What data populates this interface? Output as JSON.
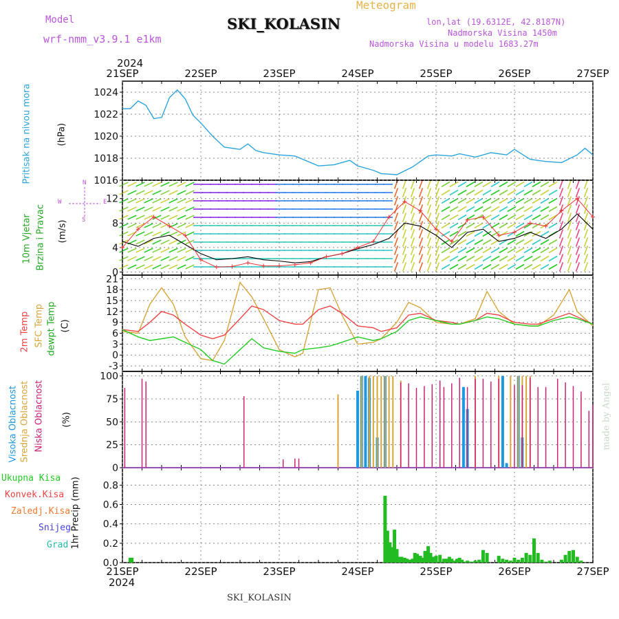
{
  "header": {
    "model_label": "Model",
    "model_name": "wrf-nmm_v3.9.1  e1km",
    "station": "SKI_KOLASIN",
    "chart_title": "Meteogram",
    "lonlat": "lon,lat (19.6312E, 42.8187N)",
    "altitude": "Nadmorska Visina 1450m",
    "model_altitude": "Nadmorska Visina u modelu 1683.27m",
    "year_top": "2024",
    "year_bottom": "2024",
    "footer_station": "SKI_KOLASIN",
    "credit": "made by Angel"
  },
  "axis_dates": [
    "21SEP",
    "22SEP",
    "23SEP",
    "24SEP",
    "25SEP",
    "26SEP",
    "27SEP"
  ],
  "labels": {
    "pressure": "Pritisak na nivou mora",
    "pressure_unit": "(hPa)",
    "wind_1": "10m Vjetar",
    "wind_2": "Brzina i Pravac",
    "wind_unit": "(m/s)",
    "wind_compass_n": "N",
    "wind_compass_w": "W",
    "wind_compass_e": "E",
    "wind_compass_s": "S",
    "temp_2m": "2m Temp",
    "temp_sfc": "SFC Temp",
    "temp_dew": "dewpt Temp",
    "temp_unit": "(C)",
    "cloud_high": "Visoka Oblacnost",
    "cloud_mid": "Srednja Oblacnost",
    "cloud_low": "Niska Oblacnost",
    "cloud_unit": "(%)",
    "precip_total": "Ukupna Kisa",
    "precip_conv": "Konvek.Kisa",
    "precip_frz": "Zaledj.Kisa",
    "precip_snow": "Snijeg",
    "precip_grad": "Grad",
    "precip_axis": "1hr Precip (mm)"
  },
  "colors": {
    "pressure": "#2aa4e0",
    "wind_speed": "#000000",
    "wind_gust": "#ee3333",
    "temp_2m": "#ee4444",
    "temp_sfc": "#d9a53a",
    "temp_dew": "#22cc22",
    "cloud_high": "#1f98e0",
    "cloud_mid": "#d9a53a",
    "cloud_low": "#cc2277",
    "precip_total": "#22bb22",
    "header_purple": "#bb55dd",
    "header_orange": "#e6b24a"
  },
  "chart_data": [
    {
      "type": "line",
      "title": "Pritisak na nivou mora",
      "ylabel": "(hPa)",
      "ylim": [
        1016,
        1025
      ],
      "yticks": [
        1016,
        1018,
        1020,
        1022,
        1024
      ],
      "x_days": [
        0,
        0.1,
        0.2,
        0.3,
        0.4,
        0.5,
        0.6,
        0.7,
        0.8,
        0.9,
        1.0,
        1.15,
        1.3,
        1.5,
        1.6,
        1.7,
        1.8,
        2.0,
        2.2,
        2.5,
        2.7,
        2.9,
        3.0,
        3.2,
        3.3,
        3.5,
        3.7,
        3.9,
        4.0,
        4.2,
        4.3,
        4.5,
        4.7,
        4.9,
        5.0,
        5.2,
        5.4,
        5.6,
        5.8,
        5.9,
        6.0
      ],
      "values": [
        1022.5,
        1022.5,
        1023.2,
        1022.8,
        1021.6,
        1021.7,
        1023.5,
        1024.2,
        1023.4,
        1021.9,
        1021.2,
        1020.0,
        1019.0,
        1018.8,
        1019.3,
        1018.7,
        1018.5,
        1018.3,
        1018.2,
        1017.3,
        1017.4,
        1017.8,
        1017.3,
        1016.9,
        1016.6,
        1016.5,
        1017.2,
        1018.2,
        1018.3,
        1018.2,
        1018.4,
        1018.1,
        1018.5,
        1018.3,
        1018.8,
        1017.9,
        1017.7,
        1017.6,
        1018.3,
        1018.9,
        1018.3
      ],
      "x_range_days": [
        0,
        6
      ]
    },
    {
      "type": "line",
      "title": "10m Vjetar Brzina i Pravac",
      "ylabel": "(m/s)",
      "ylim": [
        -0.5,
        15
      ],
      "yticks": [
        0,
        4,
        8,
        12
      ],
      "series": [
        {
          "role": "wind speed",
          "x_days": [
            0,
            0.2,
            0.4,
            0.6,
            0.8,
            1.0,
            1.2,
            1.4,
            1.6,
            1.8,
            2.0,
            2.2,
            2.4,
            2.6,
            2.8,
            3.0,
            3.2,
            3.4,
            3.6,
            3.8,
            4.0,
            4.2,
            4.4,
            4.6,
            4.8,
            5.0,
            5.2,
            5.4,
            5.6,
            5.8,
            6.0
          ],
          "values": [
            5.0,
            4.2,
            5.5,
            6.0,
            4.5,
            3.0,
            2.0,
            2.2,
            2.5,
            2.0,
            1.8,
            1.5,
            1.7,
            2.5,
            3.0,
            3.8,
            4.5,
            5.5,
            8.0,
            7.5,
            6.0,
            4.0,
            6.5,
            7.0,
            5.0,
            5.5,
            6.5,
            5.5,
            7.0,
            9.5,
            7.0
          ]
        },
        {
          "role": "gust",
          "x_days": [
            0,
            0.2,
            0.4,
            0.6,
            0.8,
            1.0,
            1.2,
            1.4,
            1.6,
            1.8,
            2.0,
            2.2,
            2.4,
            2.6,
            2.8,
            3.0,
            3.2,
            3.4,
            3.6,
            3.8,
            4.0,
            4.2,
            4.4,
            4.6,
            4.8,
            5.0,
            5.2,
            5.4,
            5.6,
            5.8,
            6.0
          ],
          "values": [
            4.0,
            7.0,
            9.0,
            7.5,
            6.0,
            2.0,
            0.8,
            0.9,
            1.5,
            1.0,
            1.0,
            1.2,
            1.5,
            2.5,
            3.0,
            4.0,
            5.0,
            9.0,
            11.5,
            10.0,
            7.0,
            5.0,
            8.5,
            9.0,
            6.0,
            6.5,
            8.0,
            7.5,
            10.0,
            12.0,
            9.0
          ]
        }
      ],
      "x_range_days": [
        0,
        6
      ]
    },
    {
      "type": "line",
      "title": "2m Temp / SFC Temp / dewpt Temp",
      "ylabel": "(C)",
      "ylim": [
        -4.5,
        22
      ],
      "yticks": [
        -3,
        0,
        3,
        6,
        9,
        12,
        15,
        18,
        21
      ],
      "series": [
        {
          "name": "2m Temp",
          "x_days": [
            0,
            0.2,
            0.35,
            0.5,
            0.65,
            0.8,
            1.0,
            1.15,
            1.3,
            1.5,
            1.65,
            1.8,
            2.0,
            2.2,
            2.3,
            2.5,
            2.65,
            2.8,
            3.0,
            3.2,
            3.3,
            3.5,
            3.65,
            3.8,
            4.0,
            4.2,
            4.3,
            4.5,
            4.65,
            4.8,
            5.0,
            5.2,
            5.3,
            5.5,
            5.7,
            5.8,
            6.0
          ],
          "values": [
            7.0,
            6.5,
            9.0,
            12.0,
            11.0,
            8.5,
            5.5,
            4.5,
            5.5,
            10.0,
            13.5,
            12.5,
            9.5,
            8.5,
            8.5,
            12.5,
            13.5,
            11.5,
            8.0,
            7.5,
            6.5,
            7.5,
            11.0,
            11.5,
            9.5,
            9.0,
            8.5,
            9.5,
            11.5,
            11.0,
            9.0,
            8.5,
            8.5,
            10.0,
            11.5,
            10.5,
            8.5
          ]
        },
        {
          "name": "SFC Temp",
          "x_days": [
            0,
            0.2,
            0.35,
            0.5,
            0.65,
            0.8,
            1.0,
            1.15,
            1.3,
            1.5,
            1.65,
            1.8,
            2.0,
            2.2,
            2.3,
            2.5,
            2.65,
            2.8,
            3.0,
            3.2,
            3.3,
            3.5,
            3.65,
            3.8,
            4.0,
            4.2,
            4.3,
            4.5,
            4.65,
            4.8,
            5.0,
            5.2,
            5.3,
            5.5,
            5.7,
            5.8,
            6.0
          ],
          "values": [
            6.5,
            6.0,
            14.0,
            18.5,
            14.0,
            5.0,
            -1.0,
            -1.5,
            4.0,
            20.0,
            16.0,
            10.0,
            1.5,
            -0.5,
            0.5,
            18.0,
            18.5,
            11.0,
            3.0,
            3.5,
            4.5,
            9.0,
            14.5,
            13.0,
            9.0,
            8.5,
            8.5,
            10.0,
            17.5,
            12.0,
            8.5,
            8.0,
            8.0,
            11.0,
            18.0,
            12.0,
            8.0
          ]
        },
        {
          "name": "dewpt Temp",
          "x_days": [
            0,
            0.2,
            0.35,
            0.5,
            0.65,
            0.8,
            1.0,
            1.15,
            1.3,
            1.5,
            1.65,
            1.8,
            2.0,
            2.2,
            2.3,
            2.5,
            2.65,
            2.8,
            3.0,
            3.2,
            3.3,
            3.5,
            3.65,
            3.8,
            4.0,
            4.2,
            4.3,
            4.5,
            4.65,
            4.8,
            5.0,
            5.2,
            5.3,
            5.5,
            5.7,
            5.8,
            6.0
          ],
          "values": [
            7.0,
            5.0,
            4.0,
            4.5,
            5.0,
            3.5,
            1.5,
            -1.5,
            -2.5,
            1.5,
            4.5,
            2.0,
            1.0,
            0.5,
            1.5,
            2.0,
            2.5,
            3.5,
            5.0,
            4.0,
            4.5,
            6.5,
            9.5,
            10.5,
            9.5,
            8.5,
            8.5,
            9.5,
            10.5,
            10.0,
            8.5,
            8.0,
            8.0,
            9.5,
            10.5,
            10.0,
            8.5
          ]
        }
      ],
      "x_range_days": [
        0,
        6
      ]
    },
    {
      "type": "bar",
      "title": "Visoka / Srednja / Niska Oblacnost",
      "ylabel": "(%)",
      "ylim": [
        0,
        105
      ],
      "yticks": [
        0,
        25,
        50,
        75,
        100
      ],
      "series": [
        {
          "name": "Visoka Oblacnost",
          "x_days": [
            3.0,
            3.05,
            3.1,
            3.15,
            3.25,
            3.35,
            4.35,
            4.4,
            4.85,
            4.9,
            5.05,
            5.1
          ],
          "values": [
            84,
            100,
            100,
            98,
            33,
            100,
            88,
            64,
            100,
            5,
            100,
            33
          ]
        },
        {
          "name": "Srednja Oblacnost",
          "x_days": [
            2.75,
            3.05,
            3.15,
            3.2,
            3.25,
            3.3,
            3.35,
            3.4,
            3.45,
            3.55,
            4.5,
            4.8,
            4.95,
            5.05,
            5.1,
            5.15,
            5.2
          ],
          "values": [
            80,
            100,
            100,
            100,
            100,
            100,
            100,
            100,
            100,
            95,
            100,
            100,
            100,
            100,
            100,
            100,
            100
          ]
        },
        {
          "name": "Niska Oblacnost",
          "x_days": [
            0.03,
            0.25,
            0.3,
            1.55,
            2.05,
            2.2,
            2.25,
            3.55,
            3.65,
            3.75,
            3.85,
            3.95,
            4.05,
            4.1,
            4.2,
            4.3,
            4.4,
            4.5,
            4.6,
            4.7,
            4.8,
            5.0,
            5.1,
            5.2,
            5.3,
            5.4,
            5.55,
            5.65,
            5.75,
            5.85,
            5.95,
            6.0
          ],
          "values": [
            87,
            97,
            94,
            78,
            9,
            10,
            10,
            93,
            92,
            87,
            89,
            91,
            95,
            88,
            92,
            98,
            88,
            97,
            97,
            94,
            97,
            90,
            90,
            98,
            88,
            88,
            97,
            93,
            89,
            83,
            62,
            69
          ]
        }
      ],
      "x_range_days": [
        0,
        6
      ]
    },
    {
      "type": "bar",
      "title": "1hr Precip",
      "ylabel": "1hr Precip (mm)",
      "ylim": [
        0,
        0.98
      ],
      "yticks": [
        0.0,
        0.2,
        0.4,
        0.6,
        0.8
      ],
      "series": [
        {
          "name": "Ukupna Kisa",
          "x_days": [
            0.1,
            0.12,
            3.35,
            3.38,
            3.41,
            3.44,
            3.47,
            3.5,
            3.53,
            3.56,
            3.6,
            3.63,
            3.66,
            3.7,
            3.73,
            3.76,
            3.8,
            3.83,
            3.86,
            3.9,
            3.93,
            3.96,
            4.0,
            4.05,
            4.1,
            4.14,
            4.17,
            4.2,
            4.23,
            4.27,
            4.3,
            4.33,
            4.36,
            4.4,
            4.43,
            4.46,
            4.5,
            4.55,
            4.6,
            4.65,
            4.8,
            4.85,
            4.9,
            4.95,
            5.0,
            5.05,
            5.1,
            5.15,
            5.2,
            5.25,
            5.3,
            5.35,
            5.4,
            5.45,
            5.6,
            5.65,
            5.7,
            5.75,
            5.8,
            5.85
          ],
          "values": [
            0.05,
            0.05,
            0.69,
            0.33,
            0.21,
            0.16,
            0.34,
            0.14,
            0.06,
            0.06,
            0.05,
            0.04,
            0.03,
            0.04,
            0.1,
            0.09,
            0.07,
            0.05,
            0.12,
            0.17,
            0.1,
            0.06,
            0.07,
            0.08,
            0.04,
            0.04,
            0.06,
            0.04,
            0.02,
            0.04,
            0.05,
            0.03,
            0.01,
            0.02,
            0.01,
            0.01,
            0.02,
            0.03,
            0.13,
            0.1,
            0.07,
            0.04,
            0.03,
            0.02,
            0.05,
            0.03,
            0.05,
            0.1,
            0.08,
            0.25,
            0.1,
            0.03,
            0.01,
            0.02,
            0.03,
            0.08,
            0.12,
            0.13,
            0.06,
            0.02
          ]
        }
      ],
      "x_range_days": [
        0,
        6
      ]
    }
  ]
}
